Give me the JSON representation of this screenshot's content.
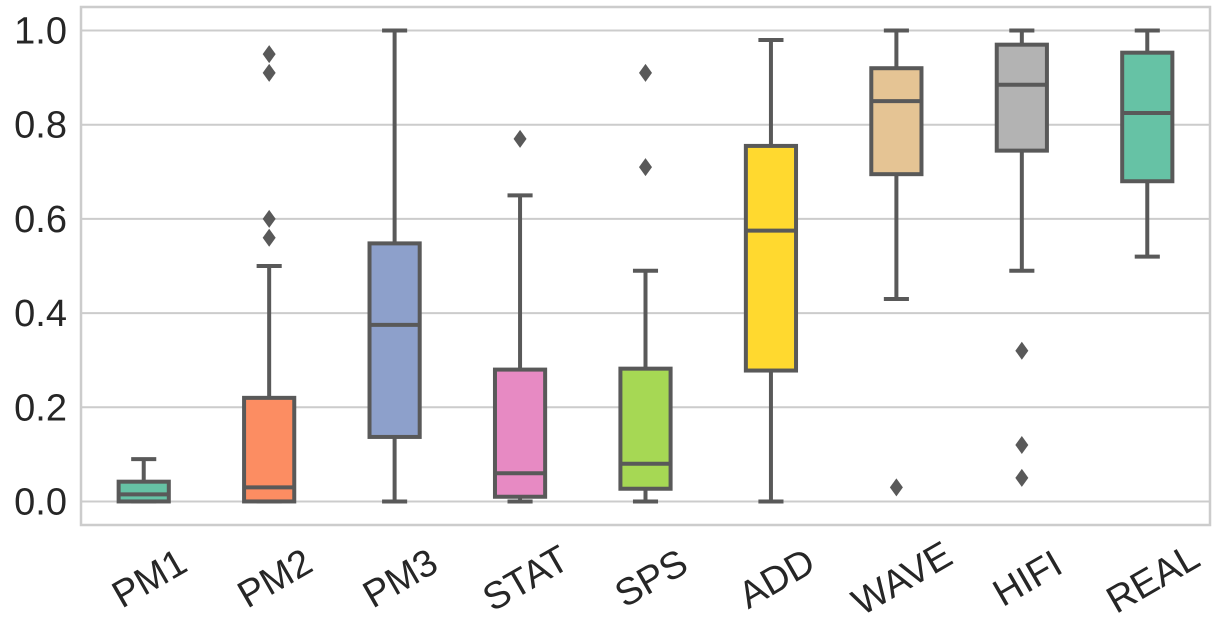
{
  "chart_data": {
    "type": "box",
    "title": "",
    "xlabel": "",
    "ylabel": "",
    "ylim": [
      -0.05,
      1.05
    ],
    "yticks": [
      0.0,
      0.2,
      0.4,
      0.6,
      0.8,
      1.0
    ],
    "ytick_labels": [
      "0.0",
      "0.2",
      "0.4",
      "0.6",
      "0.8",
      "1.0"
    ],
    "grid": "horizontal",
    "categories": [
      "PM1",
      "PM2",
      "PM3",
      "STAT",
      "SPS",
      "ADD",
      "WAVE",
      "HIFI",
      "REAL"
    ],
    "series": [
      {
        "category": "PM1",
        "color": "#66c2a5",
        "whisker_low": 0.0,
        "q1": 0.0,
        "median": 0.015,
        "q3": 0.042,
        "whisker_high": 0.09,
        "outliers": []
      },
      {
        "category": "PM2",
        "color": "#fc8d62",
        "whisker_low": 0.0,
        "q1": 0.0,
        "median": 0.03,
        "q3": 0.22,
        "whisker_high": 0.5,
        "outliers": [
          0.56,
          0.6,
          0.91,
          0.95
        ]
      },
      {
        "category": "PM3",
        "color": "#8da0cb",
        "whisker_low": 0.0,
        "q1": 0.137,
        "median": 0.375,
        "q3": 0.548,
        "whisker_high": 1.0,
        "outliers": []
      },
      {
        "category": "STAT",
        "color": "#e78ac3",
        "whisker_low": 0.0,
        "q1": 0.01,
        "median": 0.06,
        "q3": 0.28,
        "whisker_high": 0.65,
        "outliers": [
          0.77
        ]
      },
      {
        "category": "SPS",
        "color": "#a6d854",
        "whisker_low": 0.0,
        "q1": 0.027,
        "median": 0.08,
        "q3": 0.282,
        "whisker_high": 0.49,
        "outliers": [
          0.71,
          0.91
        ]
      },
      {
        "category": "ADD",
        "color": "#ffd92f",
        "whisker_low": 0.0,
        "q1": 0.278,
        "median": 0.575,
        "q3": 0.755,
        "whisker_high": 0.98,
        "outliers": []
      },
      {
        "category": "WAVE",
        "color": "#e5c494",
        "whisker_low": 0.43,
        "q1": 0.695,
        "median": 0.85,
        "q3": 0.92,
        "whisker_high": 1.0,
        "outliers": [
          0.03
        ]
      },
      {
        "category": "HIFI",
        "color": "#b3b3b3",
        "whisker_low": 0.49,
        "q1": 0.745,
        "median": 0.885,
        "q3": 0.97,
        "whisker_high": 1.0,
        "outliers": [
          0.05,
          0.12,
          0.32
        ]
      },
      {
        "category": "REAL",
        "color": "#66c2a5",
        "whisker_low": 0.52,
        "q1": 0.68,
        "median": 0.825,
        "q3": 0.953,
        "whisker_high": 1.0,
        "outliers": []
      }
    ],
    "style": {
      "edge_color": "#595959",
      "grid_color": "#cccccc",
      "frame_color": "#cccccc"
    }
  }
}
